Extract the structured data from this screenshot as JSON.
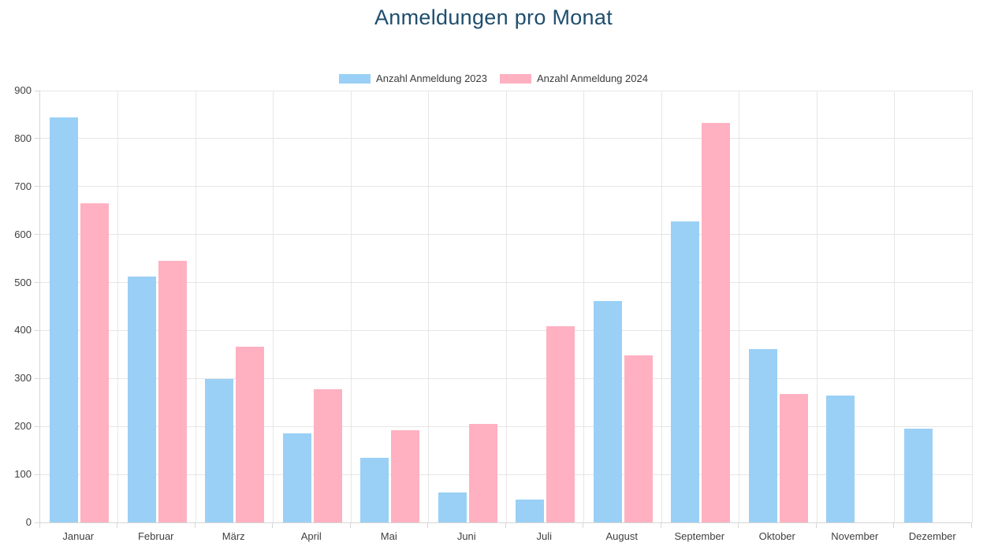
{
  "chart_data": {
    "type": "bar",
    "title": "Anmeldungen pro Monat",
    "title_color": "#1F4E6E",
    "categories": [
      "Januar",
      "Februar",
      "März",
      "April",
      "Mai",
      "Juni",
      "Juli",
      "August",
      "September",
      "Oktober",
      "November",
      "Dezember"
    ],
    "series": [
      {
        "name": "Anzahl Anmeldung 2023",
        "color": "#9AD0F5",
        "values": [
          845,
          512,
          299,
          185,
          135,
          63,
          48,
          462,
          627,
          362,
          265,
          195
        ]
      },
      {
        "name": "Anzahl Anmeldung 2024",
        "color": "#FFB1C1",
        "values": [
          665,
          546,
          366,
          278,
          192,
          205,
          409,
          348,
          832,
          267,
          null,
          null
        ]
      }
    ],
    "xlabel": "",
    "ylabel": "",
    "ylim": [
      0,
      900
    ],
    "yticks": [
      0,
      100,
      200,
      300,
      400,
      500,
      600,
      700,
      800,
      900
    ],
    "grid": true,
    "legend_position": "top",
    "grid_color": "#e6e6e6",
    "axis_color": "#d6d6d6",
    "tick_text_color": "#404040"
  }
}
